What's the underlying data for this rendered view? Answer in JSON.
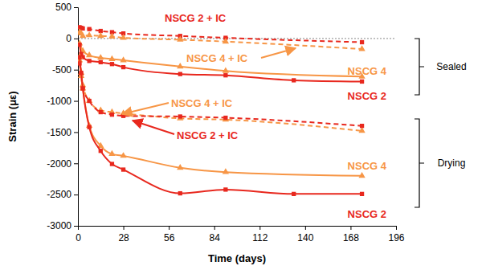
{
  "chart_data": {
    "type": "line",
    "x_label": "Time (days)",
    "y_label": "Strain (με)",
    "xlim": [
      0,
      196
    ],
    "xticks": [
      0,
      28,
      56,
      84,
      112,
      140,
      168,
      196
    ],
    "ylim": [
      -3000,
      500
    ],
    "yticks": [
      -3000,
      -2500,
      -2000,
      -1500,
      -1000,
      -500,
      0,
      500
    ],
    "grid": false,
    "annotations": [
      {
        "text": "Sealed"
      },
      {
        "text": "Drying"
      }
    ],
    "series": [
      {
        "name": "NSCG 2 + IC",
        "color": "#e8281e",
        "marker": "square",
        "line_style": "dashed",
        "x": [
          1,
          2,
          3,
          7,
          14,
          21,
          28,
          63,
          91,
          175
        ],
        "values": [
          180,
          170,
          160,
          150,
          120,
          100,
          80,
          40,
          10,
          -60
        ]
      },
      {
        "name": "NSCG 4 + IC",
        "color": "#f79646",
        "marker": "triangle",
        "line_style": "dashed",
        "x": [
          1,
          2,
          3,
          7,
          14,
          21,
          28,
          63,
          91,
          175
        ],
        "values": [
          100,
          80,
          40,
          50,
          40,
          30,
          10,
          -20,
          -50,
          -170
        ]
      },
      {
        "name": "NSCG 4",
        "color": "#f79646",
        "marker": "triangle",
        "line_style": "solid",
        "x": [
          1,
          3,
          7,
          14,
          21,
          28,
          63,
          91,
          175
        ],
        "values": [
          -80,
          -200,
          -270,
          -310,
          -330,
          -350,
          -450,
          -520,
          -610
        ]
      },
      {
        "name": "NSCG 2",
        "color": "#e8281e",
        "marker": "square",
        "line_style": "solid",
        "x": [
          1,
          2,
          3,
          7,
          14,
          21,
          28,
          63,
          91,
          133,
          175
        ],
        "values": [
          -100,
          -250,
          -300,
          -360,
          -380,
          -410,
          -460,
          -570,
          -590,
          -670,
          -690
        ]
      },
      {
        "name": "NSCG 4 + IC",
        "color": "#f79646",
        "marker": "triangle",
        "line_style": "dashed",
        "x": [
          1,
          2,
          3,
          7,
          14,
          21,
          28,
          63,
          91,
          175
        ],
        "values": [
          -350,
          -550,
          -750,
          -1000,
          -1150,
          -1180,
          -1200,
          -1280,
          -1300,
          -1480
        ]
      },
      {
        "name": "NSCG 2 + IC",
        "color": "#e8281e",
        "marker": "square",
        "line_style": "dashed",
        "x": [
          1,
          2,
          3,
          7,
          14,
          21,
          28,
          63,
          91,
          175
        ],
        "values": [
          -400,
          -600,
          -800,
          -1000,
          -1180,
          -1220,
          -1240,
          -1250,
          -1270,
          -1400
        ]
      },
      {
        "name": "NSCG 4",
        "color": "#f79646",
        "marker": "triangle",
        "line_style": "solid",
        "x": [
          1,
          2,
          3,
          7,
          14,
          21,
          28,
          63,
          91,
          175
        ],
        "values": [
          -300,
          -600,
          -800,
          -1400,
          -1720,
          -1850,
          -1880,
          -2070,
          -2140,
          -2200
        ]
      },
      {
        "name": "NSCG 2",
        "color": "#e8281e",
        "marker": "square",
        "line_style": "solid",
        "x": [
          1,
          2,
          3,
          7,
          14,
          21,
          28,
          63,
          91,
          133,
          175
        ],
        "values": [
          -300,
          -550,
          -800,
          -1420,
          -1800,
          -2010,
          -2100,
          -2480,
          -2420,
          -2490,
          -2490
        ]
      }
    ]
  }
}
